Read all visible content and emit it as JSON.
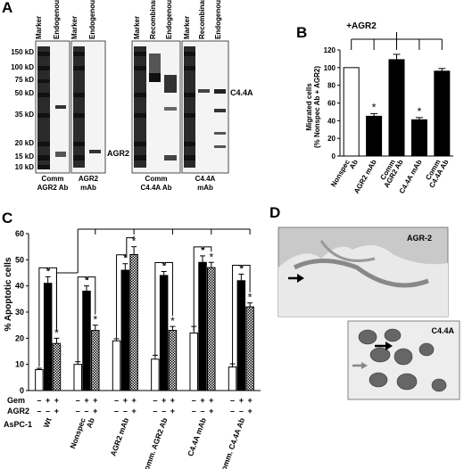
{
  "panel_letters": [
    "A",
    "B",
    "C",
    "D"
  ],
  "panel_a": {
    "mw_labels": [
      "150 kD",
      "100 kD",
      "75 kD",
      "50 kD",
      "35 kD",
      "20 kD",
      "15 kD",
      "10 kD"
    ],
    "blot1_lanes": [
      "Marker",
      "Endogenous"
    ],
    "blot1_caption": [
      "Comm",
      "AGR2 Ab"
    ],
    "blot2_lanes": [
      "Marker",
      "Endogenous"
    ],
    "blot2_caption": [
      "AGR2",
      "mAb"
    ],
    "agr2_band_label": "AGR2",
    "blot3_lanes": [
      "Marker",
      "Recombinant",
      "Endogenous"
    ],
    "blot3_caption": [
      "Comm",
      "C4.4A Ab"
    ],
    "blot4_lanes": [
      "Marker",
      "Recombinant",
      "Endogenous"
    ],
    "blot4_caption": [
      "C4.4A",
      "mAb"
    ],
    "c44a_band_label": "C4.4A"
  },
  "panel_d": {
    "top_label": "AGR-2",
    "bottom_label": "C4.4A"
  },
  "chart_data": [
    {
      "type": "bar",
      "panel": "B",
      "bracket_label": "+AGR2",
      "ylabel": "Migrated cells\n(% Nonspec Ab + AGR2)",
      "ylim": [
        0,
        120
      ],
      "yticks": [
        0,
        20,
        40,
        60,
        80,
        100,
        120
      ],
      "categories": [
        "Nonspec Ab",
        "AGR2 mAb",
        "Comm AGR2 Ab",
        "C4.4A mAb",
        "Comm C4.4A Ab"
      ],
      "values": [
        100,
        45,
        109,
        41,
        96
      ],
      "errors": [
        0,
        3,
        6,
        2.5,
        3
      ],
      "significant": [
        false,
        true,
        false,
        true,
        false
      ],
      "fill": [
        "#ffffff",
        "#000000",
        "#000000",
        "#000000",
        "#000000"
      ]
    },
    {
      "type": "bar",
      "panel": "C",
      "ylabel": "% Apoptotic cells",
      "ylim": [
        0,
        60
      ],
      "yticks": [
        0,
        10,
        20,
        30,
        40,
        50,
        60
      ],
      "row_labels": [
        "Gem",
        "AGR2"
      ],
      "cell_line": "AsPC-1",
      "gem_signs": [
        "–",
        "+",
        "+"
      ],
      "agr2_signs": [
        "–",
        "–",
        "+"
      ],
      "categories": [
        "Wt",
        "Nonspec Ab",
        "AGR2 mAb",
        "Comm. AGR2 Ab",
        "C4.4A mAb",
        "Comm. C4.4A Ab"
      ],
      "series": [
        {
          "values": [
            8,
            10,
            19,
            12,
            22,
            9
          ],
          "errors": [
            0.5,
            1,
            0.8,
            1.5,
            2.5,
            1.2
          ],
          "significant": [
            false,
            false,
            false,
            false,
            false,
            false
          ]
        },
        {
          "values": [
            41,
            38,
            46,
            44,
            49,
            42
          ],
          "errors": [
            2.5,
            2,
            2.5,
            1.5,
            2.5,
            2.5
          ],
          "significant": [
            true,
            true,
            true,
            true,
            true,
            true
          ]
        },
        {
          "values": [
            18,
            23,
            52,
            23,
            47,
            32
          ],
          "errors": [
            2,
            2,
            3,
            1.5,
            2,
            1.5
          ],
          "significant": [
            true,
            true,
            true,
            true,
            true,
            true
          ]
        }
      ],
      "star": "*"
    }
  ]
}
